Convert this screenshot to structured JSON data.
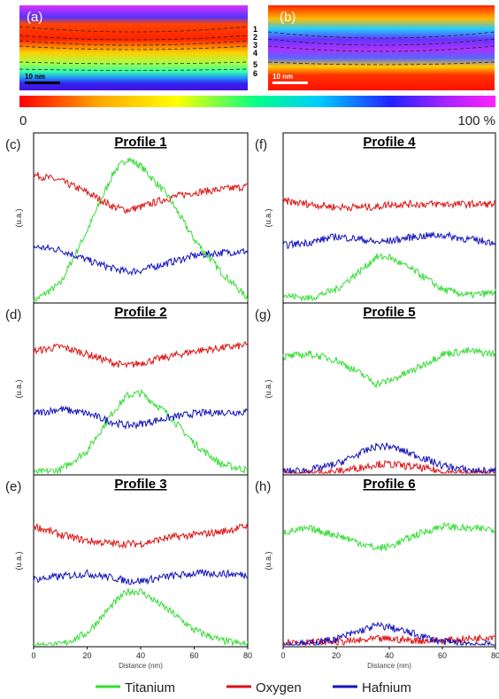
{
  "maps": [
    {
      "panel": "(a)",
      "scalebar": "10 nm",
      "layers": [
        "1",
        "2",
        "3",
        "4",
        "5",
        "6"
      ]
    },
    {
      "panel": "(b)",
      "scalebar": "10 nm"
    }
  ],
  "colorbar": {
    "min_label": "0",
    "max_label": "100 %"
  },
  "chart_data": [
    {
      "type": "line",
      "panel": "(c)",
      "title": "Profile 1",
      "ylabel": "(u.a.)",
      "xlim": [
        0,
        80
      ],
      "x": [
        0,
        10,
        20,
        30,
        35,
        40,
        50,
        60,
        70,
        80
      ],
      "series": [
        {
          "name": "Titanium",
          "color": "#33dd33",
          "values": [
            0.0,
            0.12,
            0.48,
            0.88,
            0.97,
            0.92,
            0.72,
            0.42,
            0.2,
            0.02
          ]
        },
        {
          "name": "Oxygen",
          "color": "#dd1111",
          "values": [
            0.86,
            0.82,
            0.74,
            0.64,
            0.62,
            0.64,
            0.7,
            0.74,
            0.76,
            0.78
          ]
        },
        {
          "name": "Hafnium",
          "color": "#1111bb",
          "values": [
            0.37,
            0.35,
            0.28,
            0.22,
            0.2,
            0.21,
            0.26,
            0.31,
            0.33,
            0.34
          ]
        }
      ]
    },
    {
      "type": "line",
      "panel": "(d)",
      "title": "Profile 2",
      "ylabel": "(u.a.)",
      "xlim": [
        0,
        80
      ],
      "x": [
        0,
        10,
        20,
        30,
        35,
        40,
        50,
        60,
        70,
        80
      ],
      "series": [
        {
          "name": "Titanium",
          "color": "#33dd33",
          "values": [
            0.0,
            0.02,
            0.15,
            0.42,
            0.52,
            0.54,
            0.4,
            0.2,
            0.06,
            0.02
          ]
        },
        {
          "name": "Oxygen",
          "color": "#dd1111",
          "values": [
            0.82,
            0.85,
            0.8,
            0.74,
            0.72,
            0.74,
            0.78,
            0.82,
            0.84,
            0.86
          ]
        },
        {
          "name": "Hafnium",
          "color": "#1111bb",
          "values": [
            0.4,
            0.43,
            0.4,
            0.34,
            0.32,
            0.33,
            0.37,
            0.4,
            0.41,
            0.41
          ]
        }
      ]
    },
    {
      "type": "line",
      "panel": "(e)",
      "title": "Profile 3",
      "ylabel": "(u.a.)",
      "xlim": [
        0,
        80
      ],
      "x": [
        0,
        10,
        20,
        30,
        35,
        40,
        50,
        60,
        70,
        80
      ],
      "series": [
        {
          "name": "Titanium",
          "color": "#33dd33",
          "values": [
            0.0,
            0.0,
            0.08,
            0.28,
            0.36,
            0.36,
            0.24,
            0.1,
            0.03,
            0.0
          ]
        },
        {
          "name": "Oxygen",
          "color": "#dd1111",
          "values": [
            0.8,
            0.74,
            0.7,
            0.68,
            0.68,
            0.68,
            0.72,
            0.74,
            0.76,
            0.8
          ]
        },
        {
          "name": "Hafnium",
          "color": "#1111bb",
          "values": [
            0.44,
            0.46,
            0.48,
            0.45,
            0.43,
            0.43,
            0.46,
            0.48,
            0.48,
            0.47
          ]
        }
      ]
    },
    {
      "type": "line",
      "panel": "(f)",
      "title": "Profile 4",
      "ylabel": "(u.a.)",
      "xlim": [
        0,
        80
      ],
      "x": [
        0,
        10,
        20,
        30,
        35,
        40,
        50,
        60,
        70,
        80
      ],
      "series": [
        {
          "name": "Titanium",
          "color": "#33dd33",
          "values": [
            0.04,
            0.02,
            0.08,
            0.22,
            0.3,
            0.3,
            0.2,
            0.08,
            0.04,
            0.06
          ]
        },
        {
          "name": "Oxygen",
          "color": "#dd1111",
          "values": [
            0.68,
            0.66,
            0.64,
            0.64,
            0.64,
            0.66,
            0.66,
            0.66,
            0.66,
            0.66
          ]
        },
        {
          "name": "Hafnium",
          "color": "#1111bb",
          "values": [
            0.38,
            0.4,
            0.44,
            0.42,
            0.4,
            0.41,
            0.44,
            0.45,
            0.42,
            0.4
          ]
        }
      ]
    },
    {
      "type": "line",
      "panel": "(g)",
      "title": "Profile 5",
      "ylabel": "(u.a.)",
      "xlim": [
        0,
        80
      ],
      "x": [
        0,
        10,
        20,
        30,
        35,
        40,
        50,
        60,
        70,
        80
      ],
      "series": [
        {
          "name": "Titanium",
          "color": "#33dd33",
          "values": [
            0.78,
            0.8,
            0.76,
            0.66,
            0.6,
            0.62,
            0.7,
            0.8,
            0.82,
            0.8
          ]
        },
        {
          "name": "Oxygen",
          "color": "#dd1111",
          "values": [
            0.0,
            0.0,
            0.01,
            0.04,
            0.06,
            0.06,
            0.04,
            0.01,
            0.0,
            0.0
          ]
        },
        {
          "name": "Hafnium",
          "color": "#1111bb",
          "values": [
            0.01,
            0.02,
            0.06,
            0.14,
            0.18,
            0.18,
            0.12,
            0.05,
            0.02,
            0.01
          ]
        }
      ]
    },
    {
      "type": "line",
      "panel": "(h)",
      "title": "Profile 6",
      "ylabel": "(u.a.)",
      "xlim": [
        0,
        80
      ],
      "x": [
        0,
        10,
        20,
        30,
        35,
        40,
        50,
        60,
        70,
        80
      ],
      "series": [
        {
          "name": "Titanium",
          "color": "#33dd33",
          "values": [
            0.76,
            0.78,
            0.74,
            0.68,
            0.65,
            0.66,
            0.74,
            0.8,
            0.78,
            0.78
          ]
        },
        {
          "name": "Oxygen",
          "color": "#dd1111",
          "values": [
            0.02,
            0.02,
            0.02,
            0.03,
            0.04,
            0.04,
            0.03,
            0.03,
            0.04,
            0.06
          ]
        },
        {
          "name": "Hafnium",
          "color": "#1111bb",
          "values": [
            0.0,
            0.01,
            0.04,
            0.1,
            0.13,
            0.12,
            0.07,
            0.02,
            0.01,
            0.0
          ]
        }
      ]
    }
  ],
  "xaxis": {
    "label": "Distance (nm)",
    "ticks": [
      "0",
      "20",
      "40",
      "60",
      "80"
    ]
  },
  "legend": [
    {
      "label": "Titanium",
      "color": "#33dd33"
    },
    {
      "label": "Oxygen",
      "color": "#dd1111"
    },
    {
      "label": "Hafnium",
      "color": "#1111bb"
    }
  ]
}
